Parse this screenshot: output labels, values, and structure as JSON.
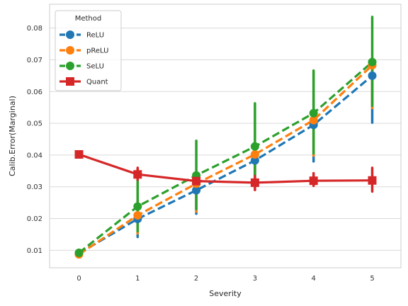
{
  "chart_data": {
    "type": "line",
    "xlabel": "Severity",
    "ylabel": "Calib.Error(Marginal)",
    "legend_title": "Method",
    "legend_position": "top-left",
    "grid": "horizontal",
    "categories": [
      "0",
      "1",
      "2",
      "3",
      "4",
      "5"
    ],
    "ylim": [
      0.0045,
      0.0875
    ],
    "yticks": [
      "0.01",
      "0.02",
      "0.03",
      "0.04",
      "0.05",
      "0.06",
      "0.07",
      "0.08"
    ],
    "series": [
      {
        "name": "ReLU",
        "color": "#1f77b4",
        "linestyle": "dashed",
        "marker": "circle",
        "values": [
          0.009,
          0.0199,
          0.0289,
          0.0383,
          0.0495,
          0.065
        ],
        "err_low": [
          0.0088,
          0.0142,
          0.0215,
          0.0335,
          0.038,
          0.0502
        ],
        "err_high": [
          0.0092,
          0.0246,
          0.0321,
          0.0405,
          0.0514,
          0.0668
        ]
      },
      {
        "name": "pReLU",
        "color": "#ff7f0e",
        "linestyle": "dashed",
        "marker": "circle",
        "values": [
          0.0087,
          0.021,
          0.031,
          0.0402,
          0.051,
          0.0683
        ],
        "err_low": [
          0.0085,
          0.0153,
          0.0222,
          0.0348,
          0.0398,
          0.0548
        ],
        "err_high": [
          0.0089,
          0.0258,
          0.0338,
          0.0424,
          0.053,
          0.0702
        ]
      },
      {
        "name": "SeLU",
        "color": "#2ca02c",
        "linestyle": "dashed",
        "marker": "circle",
        "values": [
          0.0092,
          0.0238,
          0.0336,
          0.0427,
          0.0532,
          0.0693
        ],
        "err_low": [
          0.009,
          0.016,
          0.023,
          0.0325,
          0.0405,
          0.0555
        ],
        "err_high": [
          0.0094,
          0.0355,
          0.0445,
          0.0563,
          0.0666,
          0.0835
        ]
      },
      {
        "name": "Quant",
        "color": "#d62728",
        "linestyle": "solid",
        "marker": "square",
        "values": [
          0.0402,
          0.0339,
          0.0318,
          0.0313,
          0.0319,
          0.032
        ],
        "err_low": [
          0.04,
          0.0322,
          0.03,
          0.029,
          0.0303,
          0.0285
        ],
        "err_high": [
          0.0404,
          0.036,
          0.034,
          0.0334,
          0.0343,
          0.036
        ]
      }
    ]
  }
}
